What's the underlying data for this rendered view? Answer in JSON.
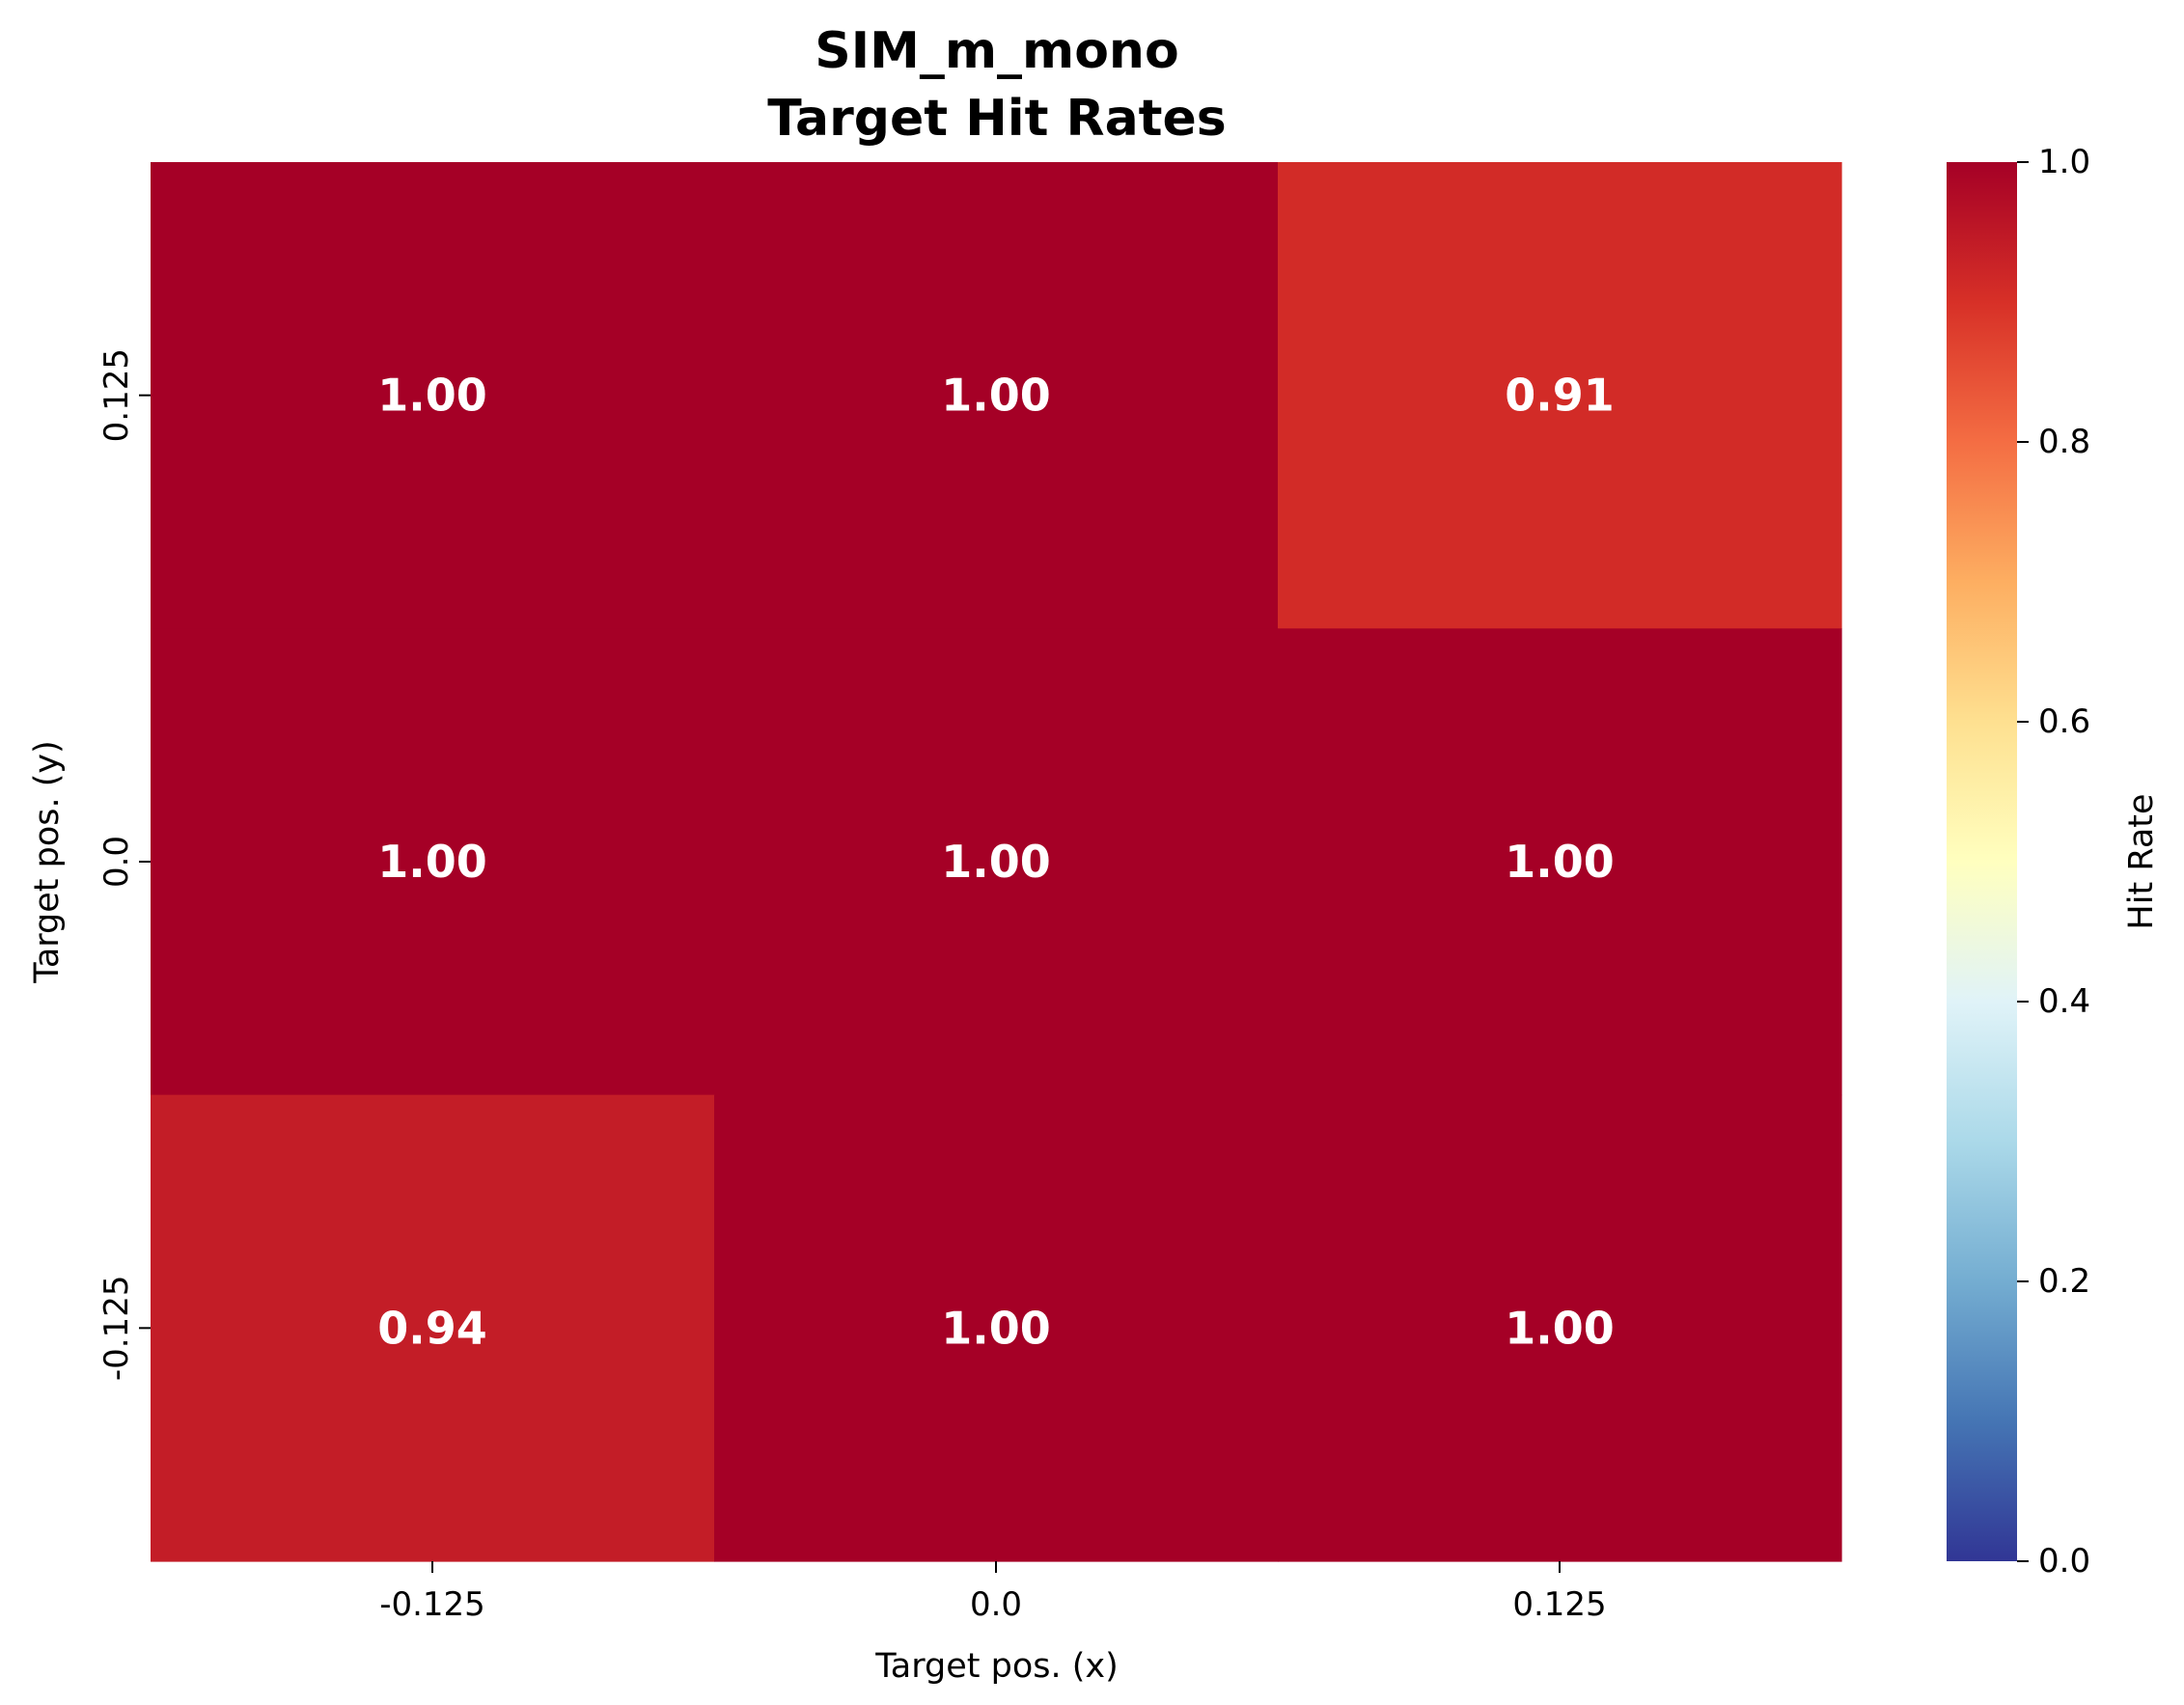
{
  "chart_data": {
    "type": "heatmap",
    "title": [
      "SIM_m_mono",
      "Target Hit Rates"
    ],
    "xlabel": "Target pos. (x)",
    "ylabel": "Target pos. (y)",
    "x_categories": [
      "-0.125",
      "0.0",
      "0.125"
    ],
    "y_categories": [
      "0.125",
      "0.0",
      "-0.125"
    ],
    "values": [
      [
        1.0,
        1.0,
        0.91
      ],
      [
        1.0,
        1.0,
        1.0
      ],
      [
        0.94,
        1.0,
        1.0
      ]
    ],
    "cell_labels": [
      [
        "1.00",
        "1.00",
        "0.91"
      ],
      [
        "1.00",
        "1.00",
        "1.00"
      ],
      [
        "0.94",
        "1.00",
        "1.00"
      ]
    ],
    "colormap": "RdYlBu_r",
    "vmin": 0,
    "vmax": 1,
    "colorbar": {
      "label": "Hit Rate",
      "ticks": [
        0.0,
        0.2,
        0.4,
        0.6,
        0.8,
        1.0
      ],
      "tick_labels": [
        "0.0",
        "0.2",
        "0.4",
        "0.6",
        "0.8",
        "1.0"
      ]
    },
    "cell_label_color": "#ffffff"
  }
}
